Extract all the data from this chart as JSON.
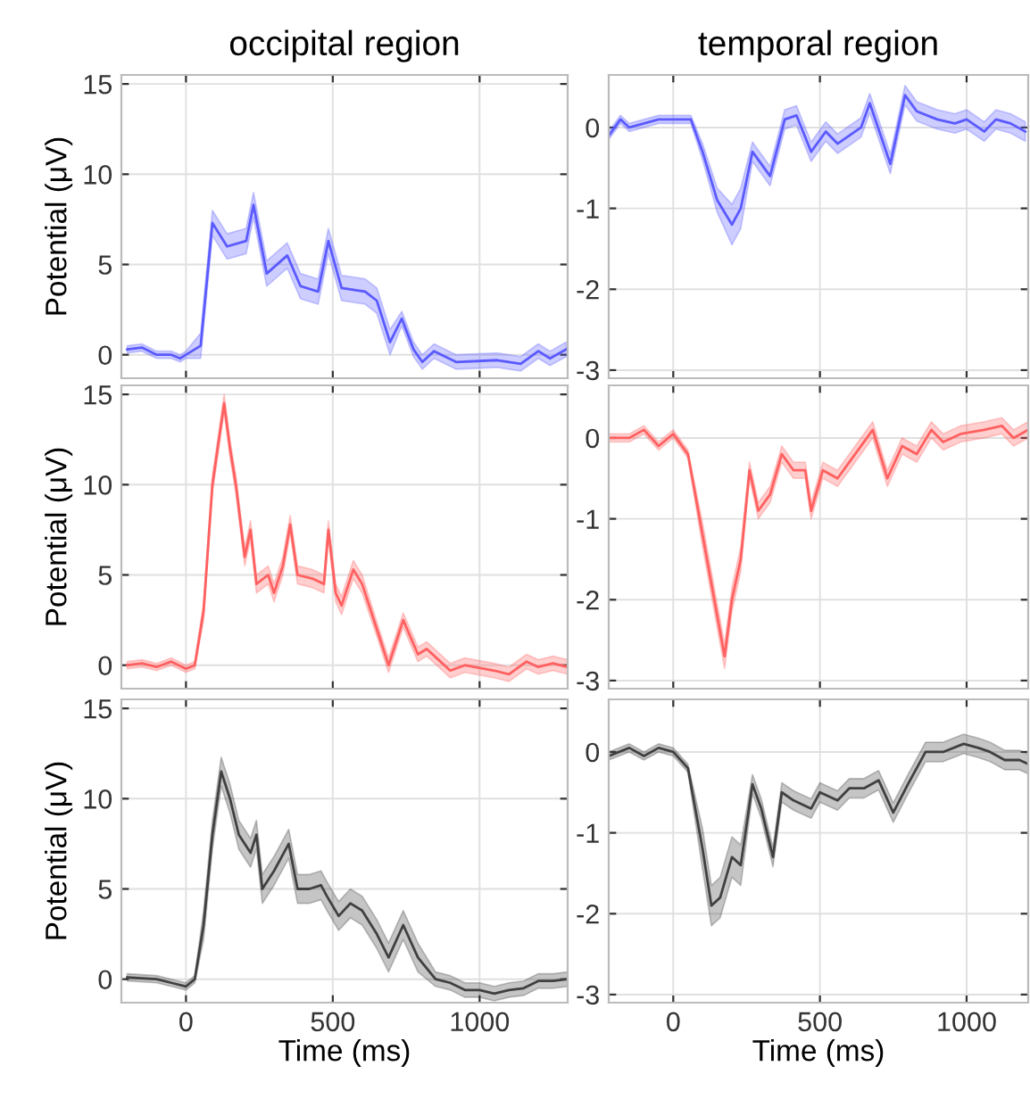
{
  "chart_data": [
    {
      "type": "line",
      "title": "occipital region",
      "ylabel": "Potential (μV)",
      "xlim": [
        -220,
        1300
      ],
      "xticks": [
        0,
        500,
        1000
      ],
      "ylim": [
        -1.3,
        15.5
      ],
      "yticks": [
        0,
        5,
        10,
        15
      ],
      "grid": true,
      "tick_labels": "y",
      "series": [
        {
          "color": "#5a5aff",
          "x": [
            -200,
            -150,
            -100,
            -50,
            -20,
            0,
            50,
            90,
            140,
            205,
            230,
            275,
            345,
            390,
            450,
            485,
            530,
            610,
            650,
            695,
            735,
            775,
            805,
            845,
            920,
            1060,
            1140,
            1200,
            1240,
            1295
          ],
          "values": [
            0.3,
            0.4,
            0,
            0,
            -0.2,
            0,
            0.5,
            7.3,
            6,
            6.3,
            8.3,
            4.5,
            5.5,
            3.8,
            3.5,
            6.3,
            3.7,
            3.5,
            3,
            0.7,
            2,
            0.3,
            -0.4,
            0.2,
            -0.4,
            -0.3,
            -0.5,
            0.2,
            -0.2,
            0.3
          ],
          "lower": [
            0.1,
            0.2,
            -0.2,
            -0.2,
            -0.4,
            -0.2,
            -0.2,
            6.6,
            5.3,
            5.6,
            7.6,
            3.8,
            4.8,
            3.1,
            2.8,
            5.6,
            3.0,
            2.8,
            2.3,
            0.0,
            1.6,
            -0.1,
            -0.8,
            -0.2,
            -0.8,
            -0.7,
            -0.9,
            -0.2,
            -0.6,
            -0.1
          ],
          "upper": [
            0.5,
            0.6,
            0.2,
            0.2,
            0.0,
            0.2,
            1.2,
            8.0,
            6.7,
            7.0,
            9.0,
            5.2,
            6.2,
            4.5,
            4.2,
            7.0,
            4.4,
            4.2,
            3.7,
            1.4,
            2.4,
            0.7,
            0.0,
            0.6,
            0.0,
            0.1,
            -0.1,
            0.6,
            0.2,
            0.7
          ]
        }
      ]
    },
    {
      "type": "line",
      "title": "temporal region",
      "xlim": [
        -220,
        1210
      ],
      "xticks": [
        0,
        500,
        1000
      ],
      "ylim": [
        -3.1,
        0.65
      ],
      "yticks": [
        -3,
        -2,
        -1,
        0
      ],
      "grid": true,
      "tick_labels": "y",
      "series": [
        {
          "color": "#5a5aff",
          "x": [
            -220,
            -180,
            -150,
            -100,
            -50,
            0,
            60,
            100,
            150,
            200,
            230,
            270,
            330,
            380,
            420,
            470,
            520,
            560,
            640,
            670,
            740,
            790,
            830,
            900,
            960,
            1000,
            1060,
            1100,
            1150,
            1200
          ],
          "values": [
            -0.1,
            0.1,
            0,
            0.05,
            0.1,
            0.1,
            0.1,
            -0.3,
            -0.9,
            -1.2,
            -1.0,
            -0.3,
            -0.6,
            0.1,
            0.15,
            -0.3,
            -0.05,
            -0.2,
            0,
            0.3,
            -0.45,
            0.4,
            0.2,
            0.1,
            0.05,
            0.1,
            -0.05,
            0.1,
            0.05,
            -0.05
          ],
          "lower": [
            -0.15,
            0.05,
            -0.05,
            0,
            0.05,
            0.05,
            0.05,
            -0.4,
            -1.05,
            -1.45,
            -1.25,
            -0.42,
            -0.72,
            -0.02,
            0.03,
            -0.42,
            -0.17,
            -0.32,
            -0.12,
            0.18,
            -0.57,
            0.28,
            0.08,
            -0.02,
            -0.07,
            -0.02,
            -0.17,
            -0.02,
            -0.07,
            -0.17
          ],
          "upper": [
            -0.05,
            0.15,
            0.05,
            0.1,
            0.15,
            0.15,
            0.15,
            -0.2,
            -0.75,
            -0.95,
            -0.75,
            -0.18,
            -0.48,
            0.22,
            0.27,
            -0.18,
            0.07,
            -0.08,
            0.12,
            0.42,
            -0.33,
            0.52,
            0.32,
            0.22,
            0.17,
            0.22,
            0.07,
            0.22,
            0.17,
            0.07
          ]
        }
      ]
    },
    {
      "type": "line",
      "ylabel": "Potential (μV)",
      "xlim": [
        -220,
        1300
      ],
      "xticks": [
        0,
        500,
        1000
      ],
      "ylim": [
        -1.3,
        15.5
      ],
      "yticks": [
        0,
        5,
        10,
        15
      ],
      "grid": true,
      "tick_labels": "y",
      "series": [
        {
          "color": "#ff6060",
          "x": [
            -200,
            -150,
            -100,
            -50,
            0,
            30,
            60,
            90,
            130,
            150,
            170,
            200,
            220,
            240,
            280,
            300,
            330,
            355,
            380,
            430,
            470,
            485,
            510,
            530,
            570,
            600,
            650,
            690,
            740,
            790,
            820,
            860,
            900,
            950,
            1050,
            1100,
            1160,
            1200,
            1250,
            1300
          ],
          "values": [
            0,
            0.1,
            -0.1,
            0.2,
            -0.2,
            0,
            3,
            10,
            14.5,
            12,
            10,
            6,
            7.5,
            4.5,
            5,
            4,
            5.5,
            7.8,
            5,
            4.8,
            4.5,
            7.5,
            4,
            3.3,
            5.3,
            4.5,
            2,
            0,
            2.5,
            0.6,
            0.9,
            0.3,
            -0.3,
            0,
            -0.3,
            -0.5,
            0.2,
            -0.1,
            0.1,
            -0.1
          ],
          "lower": [
            -0.2,
            -0.1,
            -0.3,
            0,
            -0.4,
            -0.2,
            2.5,
            9.5,
            14.0,
            11.5,
            9.5,
            5.5,
            7.0,
            4.0,
            4.5,
            3.5,
            5.0,
            7.3,
            4.5,
            4.3,
            4.0,
            7.0,
            3.5,
            2.8,
            4.8,
            4.0,
            1.6,
            -0.4,
            2.1,
            0.2,
            0.5,
            -0.1,
            -0.7,
            -0.4,
            -0.7,
            -0.9,
            -0.2,
            -0.5,
            -0.3,
            -0.5
          ],
          "upper": [
            0.2,
            0.3,
            0.1,
            0.4,
            0,
            0.2,
            3.5,
            10.5,
            15.0,
            12.5,
            10.5,
            6.5,
            8.0,
            5.0,
            5.5,
            4.5,
            6.0,
            8.3,
            5.5,
            5.3,
            5.0,
            8.0,
            4.5,
            3.8,
            5.8,
            5.0,
            2.4,
            0.4,
            2.9,
            1.0,
            1.3,
            0.7,
            0.1,
            0.4,
            0.1,
            -0.1,
            0.6,
            0.3,
            0.5,
            0.3
          ]
        }
      ]
    },
    {
      "type": "line",
      "xlim": [
        -220,
        1210
      ],
      "xticks": [
        0,
        500,
        1000
      ],
      "ylim": [
        -3.1,
        0.65
      ],
      "yticks": [
        -3,
        -2,
        -1,
        0
      ],
      "grid": true,
      "tick_labels": "y",
      "series": [
        {
          "color": "#ff6060",
          "x": [
            -220,
            -150,
            -100,
            -50,
            0,
            50,
            100,
            150,
            175,
            200,
            230,
            260,
            290,
            330,
            370,
            410,
            450,
            470,
            510,
            560,
            610,
            680,
            730,
            780,
            830,
            880,
            920,
            980,
            1060,
            1120,
            1160,
            1210
          ],
          "values": [
            0,
            0,
            0.1,
            -0.1,
            0.05,
            -0.2,
            -1.2,
            -2.2,
            -2.7,
            -2.0,
            -1.5,
            -0.4,
            -0.9,
            -0.7,
            -0.2,
            -0.4,
            -0.4,
            -0.9,
            -0.4,
            -0.5,
            -0.25,
            0.1,
            -0.5,
            -0.1,
            -0.2,
            0.1,
            -0.05,
            0.05,
            0.1,
            0.15,
            0,
            0.1
          ],
          "lower": [
            -0.05,
            -0.05,
            0.05,
            -0.15,
            0,
            -0.25,
            -1.35,
            -2.35,
            -2.85,
            -2.15,
            -1.65,
            -0.5,
            -1.0,
            -0.8,
            -0.3,
            -0.5,
            -0.5,
            -1.0,
            -0.5,
            -0.6,
            -0.35,
            0,
            -0.6,
            -0.2,
            -0.3,
            0,
            -0.15,
            -0.05,
            0,
            0.05,
            -0.1,
            0
          ],
          "upper": [
            0.05,
            0.05,
            0.15,
            -0.05,
            0.1,
            -0.15,
            -1.05,
            -2.05,
            -2.55,
            -1.85,
            -1.35,
            -0.3,
            -0.8,
            -0.6,
            -0.1,
            -0.3,
            -0.3,
            -0.8,
            -0.3,
            -0.4,
            -0.15,
            0.2,
            -0.4,
            0,
            -0.1,
            0.2,
            0.05,
            0.15,
            0.2,
            0.25,
            0.1,
            0.2
          ]
        }
      ]
    },
    {
      "type": "line",
      "xlabel": "Time (ms)",
      "ylabel": "Potential (μV)",
      "xlim": [
        -220,
        1300
      ],
      "xticks": [
        0,
        500,
        1000
      ],
      "ylim": [
        -1.3,
        15.5
      ],
      "yticks": [
        0,
        5,
        10,
        15
      ],
      "grid": true,
      "series": [
        {
          "color": "#404040",
          "x": [
            -200,
            -100,
            -50,
            0,
            30,
            60,
            90,
            120,
            150,
            180,
            220,
            240,
            260,
            300,
            350,
            380,
            420,
            460,
            480,
            520,
            560,
            600,
            650,
            690,
            740,
            790,
            850,
            900,
            950,
            1000,
            1050,
            1100,
            1150,
            1200,
            1250,
            1300
          ],
          "values": [
            0.1,
            0,
            -0.2,
            -0.4,
            0,
            3,
            8,
            11.5,
            10,
            8,
            7,
            8,
            5,
            6,
            7.5,
            5,
            5,
            5.2,
            4.6,
            3.5,
            4.2,
            3.8,
            2.5,
            1.2,
            3,
            1.2,
            0,
            -0.2,
            -0.6,
            -0.6,
            -0.8,
            -0.6,
            -0.5,
            -0.1,
            -0.1,
            0
          ],
          "lower": [
            -0.1,
            -0.2,
            -0.4,
            -0.6,
            -0.2,
            2.2,
            7.2,
            10.7,
            9.2,
            7.2,
            6.2,
            7.2,
            4.2,
            5.2,
            6.7,
            4.2,
            4.2,
            4.4,
            3.8,
            2.7,
            3.4,
            3.0,
            1.7,
            0.4,
            2.2,
            0.4,
            -0.4,
            -0.6,
            -1.0,
            -1.0,
            -1.2,
            -1.0,
            -0.9,
            -0.5,
            -0.5,
            -0.4
          ],
          "upper": [
            0.3,
            0.2,
            0,
            -0.2,
            0.2,
            3.8,
            8.8,
            12.3,
            10.8,
            8.8,
            7.8,
            8.8,
            5.8,
            6.8,
            8.3,
            5.8,
            5.8,
            6.0,
            5.4,
            4.3,
            5.0,
            4.6,
            3.3,
            2.0,
            3.8,
            2.0,
            0.4,
            0.2,
            -0.2,
            -0.2,
            -0.4,
            -0.2,
            -0.1,
            0.3,
            0.3,
            0.4
          ]
        }
      ]
    },
    {
      "type": "line",
      "xlabel": "Time (ms)",
      "xlim": [
        -220,
        1210
      ],
      "xticks": [
        0,
        500,
        1000
      ],
      "ylim": [
        -3.1,
        0.65
      ],
      "yticks": [
        -3,
        -2,
        -1,
        0
      ],
      "grid": true,
      "series": [
        {
          "color": "#404040",
          "x": [
            -220,
            -150,
            -100,
            -50,
            0,
            50,
            100,
            130,
            160,
            200,
            230,
            270,
            300,
            340,
            370,
            410,
            470,
            500,
            560,
            600,
            650,
            700,
            750,
            800,
            860,
            920,
            990,
            1040,
            1080,
            1130,
            1180,
            1210
          ],
          "values": [
            -0.05,
            0.05,
            -0.05,
            0.05,
            0,
            -0.2,
            -1.2,
            -1.9,
            -1.8,
            -1.3,
            -1.4,
            -0.4,
            -0.7,
            -1.3,
            -0.5,
            -0.6,
            -0.7,
            -0.5,
            -0.6,
            -0.45,
            -0.45,
            -0.35,
            -0.75,
            -0.4,
            0,
            0,
            0.1,
            0.05,
            0,
            -0.1,
            -0.1,
            -0.15
          ],
          "lower": [
            -0.1,
            0,
            -0.1,
            0,
            -0.05,
            -0.25,
            -1.45,
            -2.15,
            -2.05,
            -1.55,
            -1.65,
            -0.52,
            -0.82,
            -1.42,
            -0.62,
            -0.72,
            -0.82,
            -0.62,
            -0.72,
            -0.57,
            -0.57,
            -0.47,
            -0.87,
            -0.52,
            -0.12,
            -0.12,
            -0.02,
            -0.07,
            -0.12,
            -0.22,
            -0.22,
            -0.27
          ],
          "upper": [
            0,
            0.1,
            0,
            0.1,
            0.05,
            -0.15,
            -0.95,
            -1.65,
            -1.55,
            -1.05,
            -1.15,
            -0.28,
            -0.58,
            -1.18,
            -0.38,
            -0.48,
            -0.58,
            -0.38,
            -0.48,
            -0.33,
            -0.33,
            -0.23,
            -0.63,
            -0.28,
            0.12,
            0.12,
            0.22,
            0.17,
            0.12,
            0.02,
            0.02,
            -0.03
          ]
        }
      ]
    }
  ]
}
